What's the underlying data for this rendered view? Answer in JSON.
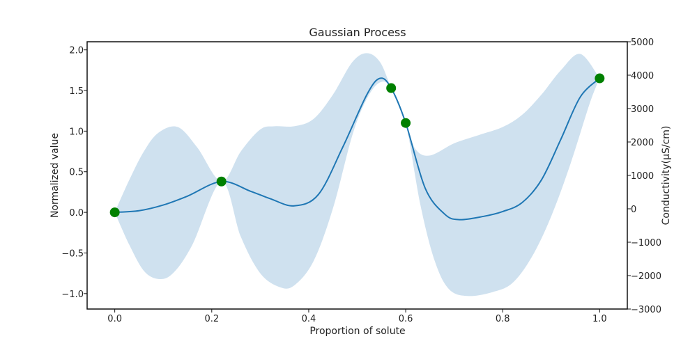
{
  "chart_data": {
    "type": "line",
    "title": "Gaussian Process",
    "xlabel": "Proportion of solute",
    "ylabel": "Normalized value",
    "y2label": "Conductivity(µS/cm)",
    "xlim": [
      -0.057,
      1.057
    ],
    "ylim": [
      -1.19,
      2.1
    ],
    "y2lim": [
      -3000,
      5000
    ],
    "xticks": [
      0.0,
      0.2,
      0.4,
      0.6,
      0.8,
      1.0
    ],
    "xtick_labels": [
      "0.0",
      "0.2",
      "0.4",
      "0.6",
      "0.8",
      "1.0"
    ],
    "yticks": [
      -1.0,
      -0.5,
      0.0,
      0.5,
      1.0,
      1.5,
      2.0
    ],
    "ytick_labels": [
      "−1.0",
      "−0.5",
      "0.0",
      "0.5",
      "1.0",
      "1.5",
      "2.0"
    ],
    "y2ticks": [
      -3000,
      -2000,
      -1000,
      0,
      1000,
      2000,
      3000,
      4000,
      5000
    ],
    "y2tick_labels": [
      "−3000",
      "−2000",
      "−1000",
      "0",
      "1000",
      "2000",
      "3000",
      "4000",
      "5000"
    ],
    "grid": false,
    "colors": {
      "mean": "#1f77b4",
      "band": "#cfe1ef",
      "points": "#008000"
    },
    "mean": {
      "x": [
        0.0,
        0.05,
        0.1,
        0.15,
        0.22,
        0.28,
        0.32,
        0.37,
        0.42,
        0.47,
        0.52,
        0.547,
        0.57,
        0.6,
        0.64,
        0.68,
        0.71,
        0.76,
        0.8,
        0.84,
        0.88,
        0.92,
        0.96,
        1.0
      ],
      "y": [
        0.0,
        0.02,
        0.09,
        0.2,
        0.38,
        0.26,
        0.17,
        0.08,
        0.22,
        0.8,
        1.45,
        1.65,
        1.53,
        1.1,
        0.3,
        -0.02,
        -0.09,
        -0.05,
        0.01,
        0.12,
        0.4,
        0.9,
        1.42,
        1.65
      ]
    },
    "band_upper": {
      "x": [
        0.0,
        0.03,
        0.06,
        0.09,
        0.13,
        0.17,
        0.22,
        0.26,
        0.3,
        0.33,
        0.37,
        0.41,
        0.45,
        0.49,
        0.52,
        0.547,
        0.57,
        0.6,
        0.62,
        0.65,
        0.7,
        0.75,
        0.8,
        0.84,
        0.88,
        0.92,
        0.96,
        1.0
      ],
      "y": [
        0.0,
        0.4,
        0.75,
        0.98,
        1.05,
        0.8,
        0.38,
        0.75,
        1.02,
        1.06,
        1.06,
        1.15,
        1.45,
        1.85,
        1.96,
        1.85,
        1.53,
        1.1,
        0.78,
        0.7,
        0.85,
        0.95,
        1.05,
        1.2,
        1.45,
        1.75,
        1.95,
        1.65
      ]
    },
    "band_lower": {
      "x": [
        0.0,
        0.03,
        0.06,
        0.09,
        0.12,
        0.16,
        0.22,
        0.26,
        0.3,
        0.34,
        0.37,
        0.41,
        0.45,
        0.49,
        0.52,
        0.547,
        0.57,
        0.6,
        0.63,
        0.66,
        0.69,
        0.73,
        0.78,
        0.82,
        0.86,
        0.9,
        0.94,
        0.98,
        1.0
      ],
      "y": [
        0.0,
        -0.4,
        -0.72,
        -0.82,
        -0.75,
        -0.4,
        0.38,
        -0.3,
        -0.75,
        -0.92,
        -0.9,
        -0.6,
        0.05,
        0.95,
        1.4,
        1.6,
        1.53,
        1.1,
        0.1,
        -0.6,
        -0.95,
        -1.03,
        -0.98,
        -0.87,
        -0.55,
        -0.05,
        0.6,
        1.35,
        1.65
      ]
    },
    "observations": {
      "x": [
        0.0,
        0.22,
        0.57,
        0.6,
        1.0
      ],
      "y": [
        0.0,
        0.38,
        1.53,
        1.1,
        1.65
      ]
    }
  }
}
